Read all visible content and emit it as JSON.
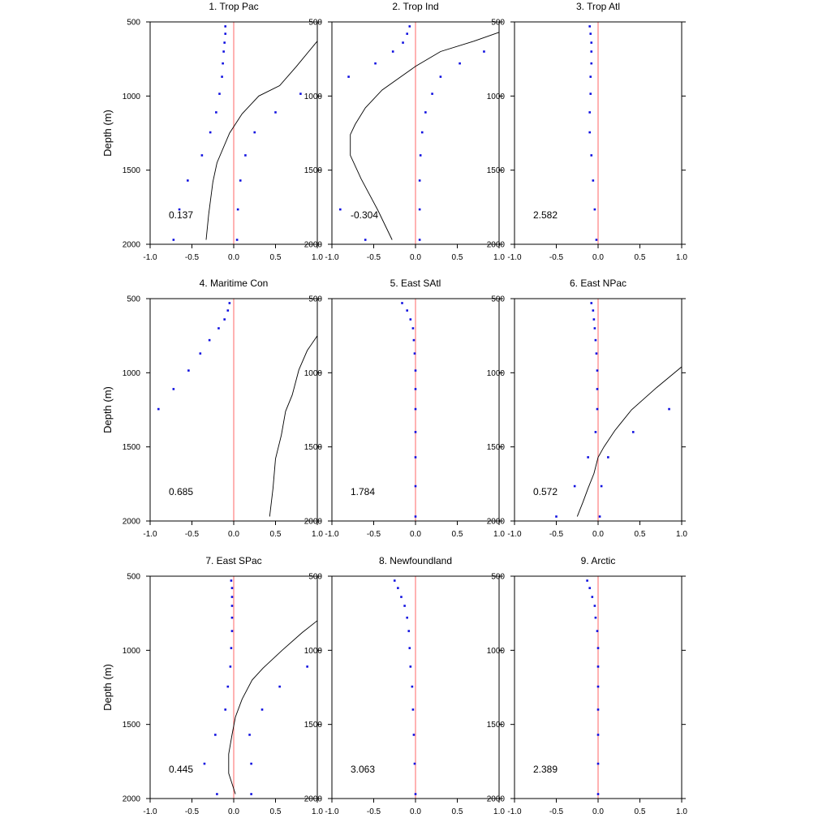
{
  "figure": {
    "ylabel": "Depth (m)",
    "colors": {
      "dots": "#1010e0",
      "line": "#000000",
      "zero_line": "#ff7f7f",
      "frame": "#000000"
    }
  },
  "chart_data": [
    {
      "type": "line+scatter",
      "title": "1. Trop Pac",
      "annotation": "0.137",
      "xlim": [
        -1.0,
        1.0
      ],
      "ylim": [
        2000,
        500
      ],
      "ylabel": "Depth (m)",
      "xticks": [
        "-1.0",
        "-0.5",
        "0.0",
        "0.5",
        "1.0"
      ],
      "yticks": [
        "500",
        "1000",
        "1500",
        "2000"
      ],
      "dots": [
        [
          -0.1,
          530
        ],
        [
          -0.1,
          580
        ],
        [
          -0.11,
          640
        ],
        [
          -0.12,
          700
        ],
        [
          -0.13,
          780
        ],
        [
          -0.14,
          870
        ],
        [
          -0.17,
          985
        ],
        [
          -0.21,
          1110
        ],
        [
          -0.28,
          1245
        ],
        [
          -0.38,
          1400
        ],
        [
          -0.55,
          1570
        ],
        [
          -0.65,
          1765
        ],
        [
          -0.72,
          1970
        ],
        [
          0.8,
          985
        ],
        [
          0.5,
          1110
        ],
        [
          0.25,
          1245
        ],
        [
          0.14,
          1400
        ],
        [
          0.08,
          1570
        ],
        [
          0.05,
          1765
        ],
        [
          0.04,
          1970
        ]
      ],
      "line": [
        [
          1.0,
          630
        ],
        [
          0.75,
          800
        ],
        [
          0.55,
          930
        ],
        [
          0.3,
          1000
        ],
        [
          0.1,
          1120
        ],
        [
          -0.05,
          1250
        ],
        [
          -0.2,
          1450
        ],
        [
          -0.25,
          1580
        ],
        [
          -0.3,
          1800
        ],
        [
          -0.33,
          1970
        ]
      ]
    },
    {
      "type": "line+scatter",
      "title": "2. Trop Ind",
      "annotation": "-0.304",
      "xlim": [
        -1.0,
        1.0
      ],
      "ylim": [
        2000,
        500
      ],
      "ylabel": "",
      "xticks": [
        "-1.0",
        "-0.5",
        "0.0",
        "0.5",
        "1.0"
      ],
      "yticks": [
        "500",
        "1000",
        "1500",
        "2000"
      ],
      "dots": [
        [
          -0.07,
          530
        ],
        [
          -0.1,
          580
        ],
        [
          -0.15,
          640
        ],
        [
          -0.27,
          700
        ],
        [
          -0.48,
          780
        ],
        [
          -0.8,
          870
        ],
        [
          -0.9,
          1765
        ],
        [
          -0.6,
          1970
        ],
        [
          0.82,
          700
        ],
        [
          0.53,
          780
        ],
        [
          0.3,
          870
        ],
        [
          0.2,
          985
        ],
        [
          0.12,
          1110
        ],
        [
          0.08,
          1245
        ],
        [
          0.06,
          1400
        ],
        [
          0.05,
          1570
        ],
        [
          0.05,
          1765
        ],
        [
          0.05,
          1970
        ]
      ],
      "line": [
        [
          1.0,
          570
        ],
        [
          0.7,
          630
        ],
        [
          0.3,
          700
        ],
        [
          0.0,
          800
        ],
        [
          -0.2,
          880
        ],
        [
          -0.4,
          960
        ],
        [
          -0.6,
          1080
        ],
        [
          -0.72,
          1190
        ],
        [
          -0.78,
          1260
        ],
        [
          -0.78,
          1400
        ],
        [
          -0.65,
          1560
        ],
        [
          -0.45,
          1770
        ],
        [
          -0.28,
          1970
        ]
      ]
    },
    {
      "type": "scatter",
      "title": "3. Trop Atl",
      "annotation": "2.582",
      "xlim": [
        -1.0,
        1.0
      ],
      "ylim": [
        2000,
        500
      ],
      "ylabel": "",
      "xticks": [
        "-1.0",
        "-0.5",
        "0.0",
        "0.5",
        "1.0"
      ],
      "yticks": [
        "500",
        "1000",
        "1500",
        "2000"
      ],
      "dots": [
        [
          -0.1,
          530
        ],
        [
          -0.09,
          580
        ],
        [
          -0.08,
          640
        ],
        [
          -0.08,
          700
        ],
        [
          -0.08,
          780
        ],
        [
          -0.09,
          870
        ],
        [
          -0.09,
          985
        ],
        [
          -0.1,
          1110
        ],
        [
          -0.1,
          1245
        ],
        [
          -0.08,
          1400
        ],
        [
          -0.06,
          1570
        ],
        [
          -0.04,
          1765
        ],
        [
          -0.02,
          1970
        ]
      ],
      "line": []
    },
    {
      "type": "line+scatter",
      "title": "4. Maritime Con",
      "annotation": "0.685",
      "xlim": [
        -1.0,
        1.0
      ],
      "ylim": [
        2000,
        500
      ],
      "ylabel": "Depth (m)",
      "xticks": [
        "-1.0",
        "-0.5",
        "0.0",
        "0.5",
        "1.0"
      ],
      "yticks": [
        "500",
        "1000",
        "1500",
        "2000"
      ],
      "dots": [
        [
          -0.05,
          530
        ],
        [
          -0.07,
          580
        ],
        [
          -0.11,
          640
        ],
        [
          -0.18,
          700
        ],
        [
          -0.29,
          780
        ],
        [
          -0.4,
          870
        ],
        [
          -0.54,
          985
        ],
        [
          -0.72,
          1110
        ],
        [
          -0.9,
          1245
        ]
      ],
      "line": [
        [
          1.0,
          750
        ],
        [
          0.88,
          850
        ],
        [
          0.78,
          980
        ],
        [
          0.7,
          1150
        ],
        [
          0.62,
          1260
        ],
        [
          0.57,
          1420
        ],
        [
          0.5,
          1580
        ],
        [
          0.47,
          1780
        ],
        [
          0.43,
          1970
        ]
      ]
    },
    {
      "type": "scatter",
      "title": "5. East SAtl",
      "annotation": "1.784",
      "xlim": [
        -1.0,
        1.0
      ],
      "ylim": [
        2000,
        500
      ],
      "ylabel": "",
      "xticks": [
        "-1.0",
        "-0.5",
        "0.0",
        "0.5",
        "1.0"
      ],
      "yticks": [
        "500",
        "1000",
        "1500",
        "2000"
      ],
      "dots": [
        [
          -0.16,
          530
        ],
        [
          -0.1,
          580
        ],
        [
          -0.06,
          640
        ],
        [
          -0.03,
          700
        ],
        [
          -0.02,
          780
        ],
        [
          -0.01,
          870
        ],
        [
          0.0,
          985
        ],
        [
          0.0,
          1110
        ],
        [
          0.0,
          1245
        ],
        [
          0.0,
          1400
        ],
        [
          0.0,
          1570
        ],
        [
          0.0,
          1765
        ],
        [
          0.0,
          1970
        ]
      ],
      "line": []
    },
    {
      "type": "line+scatter",
      "title": "6. East NPac",
      "annotation": "0.572",
      "xlim": [
        -1.0,
        1.0
      ],
      "ylim": [
        2000,
        500
      ],
      "ylabel": "",
      "xticks": [
        "-1.0",
        "-0.5",
        "0.0",
        "0.5",
        "1.0"
      ],
      "yticks": [
        "500",
        "1000",
        "1500",
        "2000"
      ],
      "dots": [
        [
          -0.08,
          530
        ],
        [
          -0.06,
          580
        ],
        [
          -0.05,
          640
        ],
        [
          -0.04,
          700
        ],
        [
          -0.03,
          780
        ],
        [
          -0.02,
          870
        ],
        [
          -0.01,
          985
        ],
        [
          -0.01,
          1110
        ],
        [
          -0.01,
          1245
        ],
        [
          -0.03,
          1400
        ],
        [
          -0.12,
          1570
        ],
        [
          -0.28,
          1765
        ],
        [
          -0.5,
          1970
        ],
        [
          0.85,
          1245
        ],
        [
          0.42,
          1400
        ],
        [
          0.12,
          1570
        ],
        [
          0.04,
          1765
        ],
        [
          0.02,
          1970
        ]
      ],
      "line": [
        [
          1.0,
          960
        ],
        [
          0.7,
          1100
        ],
        [
          0.4,
          1250
        ],
        [
          0.2,
          1390
        ],
        [
          0.07,
          1500
        ],
        [
          0.0,
          1570
        ],
        [
          -0.05,
          1680
        ],
        [
          -0.12,
          1780
        ],
        [
          -0.18,
          1870
        ],
        [
          -0.25,
          1970
        ]
      ]
    },
    {
      "type": "line+scatter",
      "title": "7. East SPac",
      "annotation": "0.445",
      "xlim": [
        -1.0,
        1.0
      ],
      "ylim": [
        2000,
        500
      ],
      "ylabel": "Depth (m)",
      "xticks": [
        "-1.0",
        "-0.5",
        "0.0",
        "0.5",
        "1.0"
      ],
      "yticks": [
        "500",
        "1000",
        "1500",
        "2000"
      ],
      "dots": [
        [
          -0.03,
          530
        ],
        [
          -0.02,
          580
        ],
        [
          -0.02,
          640
        ],
        [
          -0.02,
          700
        ],
        [
          -0.02,
          780
        ],
        [
          -0.02,
          870
        ],
        [
          -0.03,
          985
        ],
        [
          -0.04,
          1110
        ],
        [
          -0.07,
          1245
        ],
        [
          -0.1,
          1400
        ],
        [
          -0.22,
          1570
        ],
        [
          -0.35,
          1765
        ],
        [
          -0.2,
          1970
        ],
        [
          0.88,
          1110
        ],
        [
          0.55,
          1245
        ],
        [
          0.34,
          1400
        ],
        [
          0.19,
          1570
        ],
        [
          0.21,
          1765
        ],
        [
          0.21,
          1970
        ]
      ],
      "line": [
        [
          1.0,
          800
        ],
        [
          0.82,
          880
        ],
        [
          0.58,
          1000
        ],
        [
          0.35,
          1120
        ],
        [
          0.22,
          1200
        ],
        [
          0.1,
          1330
        ],
        [
          0.02,
          1450
        ],
        [
          -0.02,
          1570
        ],
        [
          -0.06,
          1700
        ],
        [
          -0.06,
          1830
        ],
        [
          0.02,
          1970
        ]
      ]
    },
    {
      "type": "scatter",
      "title": "8. Newfoundland",
      "annotation": "3.063",
      "xlim": [
        -1.0,
        1.0
      ],
      "ylim": [
        2000,
        500
      ],
      "ylabel": "",
      "xticks": [
        "-1.0",
        "-0.5",
        "0.0",
        "0.5",
        "1.0"
      ],
      "yticks": [
        "500",
        "1000",
        "1500",
        "2000"
      ],
      "dots": [
        [
          -0.25,
          530
        ],
        [
          -0.21,
          580
        ],
        [
          -0.17,
          640
        ],
        [
          -0.13,
          700
        ],
        [
          -0.1,
          780
        ],
        [
          -0.08,
          870
        ],
        [
          -0.07,
          985
        ],
        [
          -0.06,
          1110
        ],
        [
          -0.04,
          1245
        ],
        [
          -0.03,
          1400
        ],
        [
          -0.02,
          1570
        ],
        [
          -0.01,
          1765
        ],
        [
          0.0,
          1970
        ]
      ],
      "line": []
    },
    {
      "type": "scatter",
      "title": "9. Arctic",
      "annotation": "2.389",
      "xlim": [
        -1.0,
        1.0
      ],
      "ylim": [
        2000,
        500
      ],
      "ylabel": "",
      "xticks": [
        "-1.0",
        "-0.5",
        "0.0",
        "0.5",
        "1.0"
      ],
      "yticks": [
        "500",
        "1000",
        "1500",
        "2000"
      ],
      "dots": [
        [
          -0.13,
          530
        ],
        [
          -0.1,
          580
        ],
        [
          -0.07,
          640
        ],
        [
          -0.04,
          700
        ],
        [
          -0.03,
          780
        ],
        [
          -0.01,
          870
        ],
        [
          0.0,
          985
        ],
        [
          0.0,
          1110
        ],
        [
          0.0,
          1245
        ],
        [
          0.0,
          1400
        ],
        [
          0.0,
          1570
        ],
        [
          0.0,
          1765
        ],
        [
          0.0,
          1970
        ]
      ],
      "line": []
    }
  ]
}
